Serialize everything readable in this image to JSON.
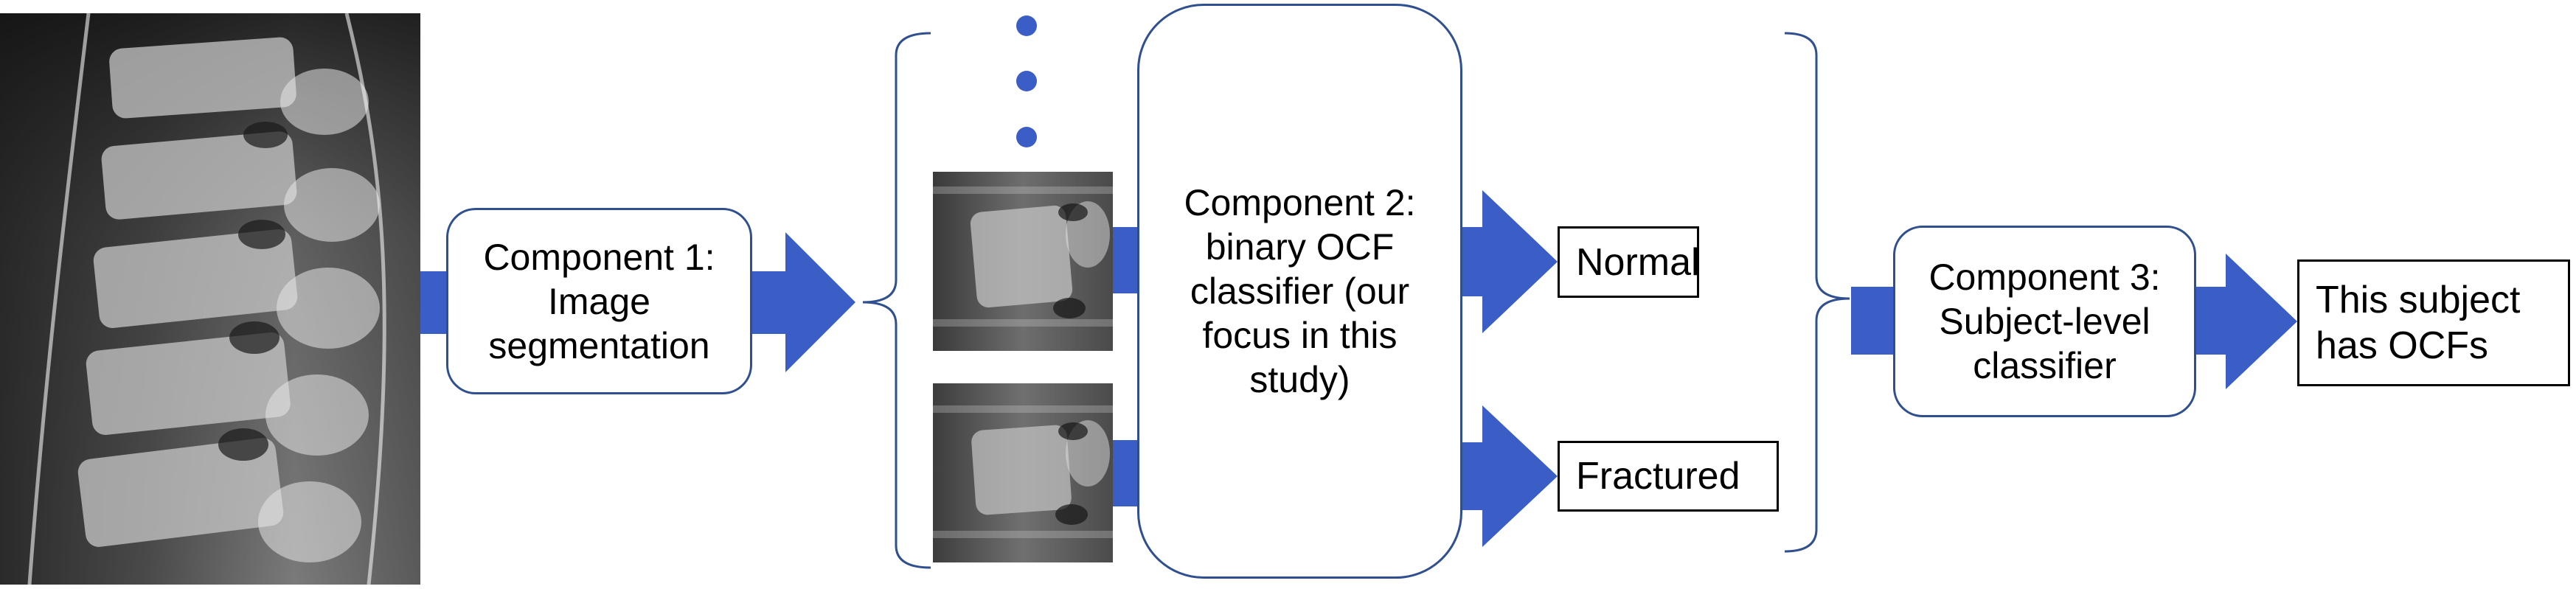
{
  "component1": {
    "label": "Component 1:\nImage\nsegmentation"
  },
  "component2": {
    "label": "Component 2:\nbinary OCF\nclassifier (our\nfocus in this\nstudy)"
  },
  "component3": {
    "label": "Component 3:\nSubject-level\nclassifier"
  },
  "outputs": {
    "normal": "Normal",
    "fractured": "Fractured"
  },
  "subject_result": {
    "label": "This subject\nhas OCFs"
  },
  "colors": {
    "arrow": "#3b5ec6",
    "arrow_dark": "#2a47a8",
    "box_border": "#2f4f8f",
    "dot": "#3b5ec6"
  },
  "icons": [
    "spine-xray-image",
    "vertebra-crop-image",
    "ellipsis-dots-icon",
    "curly-brace-icon",
    "block-arrow-icon"
  ]
}
